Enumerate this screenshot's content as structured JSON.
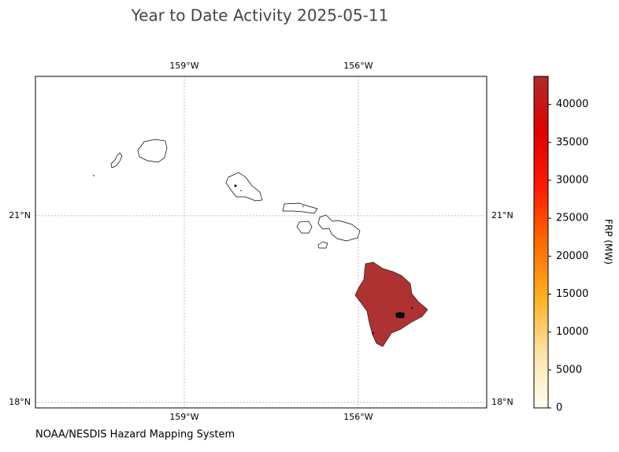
{
  "map": {
    "title": "Year to Date Activity 2025-05-11",
    "xlim": [
      -161.566,
      -153.787
    ],
    "ylim": [
      17.91,
      23.24
    ],
    "xticks": [
      {
        "value": -159,
        "label": "159°W"
      },
      {
        "value": -156,
        "label": "156°W"
      }
    ],
    "yticks": [
      {
        "value": 18,
        "label": "18°N"
      },
      {
        "value": 21,
        "label": "21°N"
      }
    ],
    "grid": true
  },
  "colorbar": {
    "label": "FRP (MW)",
    "ylim": [
      0,
      43700
    ],
    "yticks": [
      0,
      5000,
      10000,
      15000,
      20000,
      25000,
      30000,
      35000,
      40000
    ],
    "colors": [
      "#fffff2",
      "#fde3a6",
      "#ffb020",
      "#ff6a00",
      "#ff1a00",
      "#e00000",
      "#b22a2a"
    ]
  },
  "footer": "NOAA/NESDIS Hazard Mapping System"
}
